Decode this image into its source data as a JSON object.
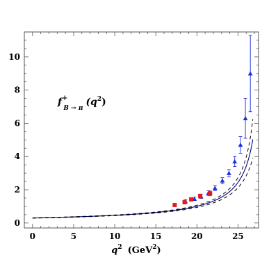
{
  "chart_data": {
    "type": "scatter",
    "title": "",
    "annotation": {
      "main": "f",
      "sup": "+",
      "sub": "B → π",
      "arg": "(q",
      "argsup": "2",
      "argend": ")"
    },
    "xlabel": {
      "main": "q",
      "sup": "2",
      "unit": "(GeV",
      "unitsup": "2",
      "unitend": ")"
    },
    "ylabel": "",
    "xlim": [
      -1,
      27.5
    ],
    "ylim": [
      -0.3,
      11.5
    ],
    "xticks": [
      0,
      5,
      10,
      15,
      20,
      25
    ],
    "yticks": [
      0,
      2,
      4,
      6,
      8,
      10
    ],
    "xminor_step": 1,
    "yminor_step": 0.5,
    "grid": false,
    "legend": "none",
    "colors": {
      "central_curve": "#000080",
      "band": "#000000",
      "lattice_blue": "#1f2fe0",
      "lattice_red": "#e41a1c"
    },
    "curves": [
      {
        "style": "solid",
        "f0": 0.3,
        "pole": 28.5,
        "x": [
          0,
          26.8
        ]
      },
      {
        "style": "dashed",
        "f0": 0.31,
        "pole": 28.2,
        "x": [
          0,
          26.8
        ]
      },
      {
        "style": "dashed",
        "f0": 0.29,
        "pole": 28.95,
        "x": [
          0,
          26.8
        ]
      }
    ],
    "series": [
      {
        "marker": "triangle",
        "color": "#1f2fe0",
        "x": [
          18.6,
          19.7,
          20.5,
          21.4,
          22.2,
          23.1,
          23.9,
          24.6,
          25.3,
          25.9,
          26.5
        ],
        "y": [
          1.3,
          1.45,
          1.6,
          1.8,
          2.1,
          2.55,
          3.0,
          3.7,
          4.7,
          6.3,
          9.0
        ],
        "err": [
          0.1,
          0.1,
          0.12,
          0.14,
          0.15,
          0.18,
          0.22,
          0.3,
          0.5,
          1.2,
          2.3
        ]
      },
      {
        "marker": "square",
        "color": "#e41a1c",
        "x": [
          17.3,
          18.5,
          19.3,
          20.4,
          21.6
        ],
        "y": [
          1.08,
          1.25,
          1.42,
          1.62,
          1.78
        ],
        "err": [
          0.08,
          0.1,
          0.1,
          0.12,
          0.14
        ]
      }
    ]
  }
}
